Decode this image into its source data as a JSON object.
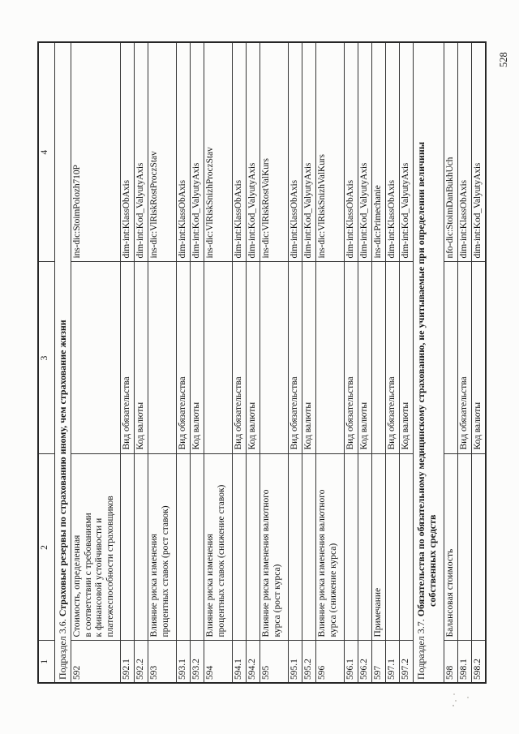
{
  "page_number": "528",
  "table": {
    "column_headers": [
      "1",
      "2",
      "3",
      "4"
    ],
    "rows": [
      {
        "type": "section",
        "label": "Подраздел 3.6.",
        "title": "Страховые резервы по страхованию иному, чем страхование жизни"
      },
      {
        "type": "data",
        "num": "592",
        "desc": "Стоимость, определенная\nв соответствии с требованиями\nк финансовой устойчивости и\nплатежеспособности страховщиков",
        "attr": "",
        "code": "ins-dic:StoimPolozh710P"
      },
      {
        "type": "data",
        "num": "592.1",
        "desc": "",
        "attr": "Вид обязательства",
        "code": "dim-int:KlassObAxis"
      },
      {
        "type": "data",
        "num": "592.2",
        "desc": "",
        "attr": "Код валюты",
        "code": "dim-int:Kod_ValyutyAxis"
      },
      {
        "type": "data",
        "num": "593",
        "desc": "Влияние риска изменения\nпроцентных ставок (рост ставок)",
        "attr": "",
        "code": "ins-dic:VlRiskRostProczStav"
      },
      {
        "type": "data",
        "num": "593.1",
        "desc": "",
        "attr": "Вид обязательства",
        "code": "dim-int:KlassObAxis"
      },
      {
        "type": "data",
        "num": "593.2",
        "desc": "",
        "attr": "Код валюты",
        "code": "dim-int:Kod_ValyutyAxis"
      },
      {
        "type": "data",
        "num": "594",
        "desc": "Влияние риска изменения\nпроцентных ставок (снижение ставок)",
        "attr": "",
        "code": "ins-dic:VlRiskSnizhProczStav"
      },
      {
        "type": "data",
        "num": "594.1",
        "desc": "",
        "attr": "Вид обязательства",
        "code": "dim-int:KlassObAxis"
      },
      {
        "type": "data",
        "num": "594.2",
        "desc": "",
        "attr": "Код валюты",
        "code": "dim-int:Kod_ValyutyAxis"
      },
      {
        "type": "data",
        "num": "595",
        "desc": "Влияние риска изменения валютного\nкурса (рост курса)",
        "attr": "",
        "code": "ins-dic:VlRiskRostValKurs"
      },
      {
        "type": "data",
        "num": "595.1",
        "desc": "",
        "attr": "Вид обязательства",
        "code": "dim-int:KlassObAxis"
      },
      {
        "type": "data",
        "num": "595.2",
        "desc": "",
        "attr": "Код валюты",
        "code": "dim-int:Kod_ValyutyAxis"
      },
      {
        "type": "data",
        "num": "596",
        "desc": "Влияние риска изменения валютного\nкурса (снижение курса)",
        "attr": "",
        "code": "ins-dic:VlRiskSnizhValKurs"
      },
      {
        "type": "data",
        "num": "596.1",
        "desc": "",
        "attr": "Вид обязательства",
        "code": "dim-int:KlassObAxis"
      },
      {
        "type": "data",
        "num": "596.2",
        "desc": "",
        "attr": "Код валюты",
        "code": "dim-int:Kod_ValyutyAxis"
      },
      {
        "type": "data",
        "num": "597",
        "desc": "Примечание",
        "attr": "",
        "code": "ins-dic:Primechanie"
      },
      {
        "type": "data",
        "num": "597.1",
        "desc": "",
        "attr": "Вид обязательства",
        "code": "dim-int:KlassObAxis"
      },
      {
        "type": "data",
        "num": "597.2",
        "desc": "",
        "attr": "Код валюты",
        "code": "dim-int:Kod_ValyutyAxis"
      },
      {
        "type": "section",
        "label": "Подраздел 3.7.",
        "title": "Обязательства по обязательному медицинскому страхованию, не учитываемые при определении величины",
        "title_line2": "собственных средств"
      },
      {
        "type": "data",
        "num": "598",
        "desc": "Балансовая стоимость",
        "attr": "",
        "code": "nfo-dic:StoimDanBukhUch"
      },
      {
        "type": "data",
        "num": "598.1",
        "desc": "",
        "attr": "Вид обязательства",
        "code": "dim-int:KlassObAxis"
      },
      {
        "type": "data",
        "num": "598.2",
        "desc": "",
        "attr": "Код валюты",
        "code": "dim-int:Kod_ValyutyAxis"
      }
    ]
  }
}
